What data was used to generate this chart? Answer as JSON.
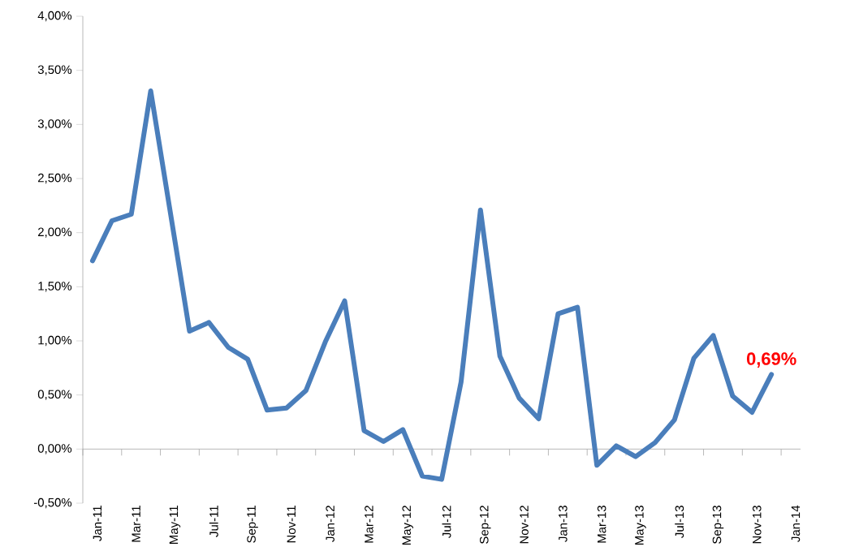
{
  "chart_data": {
    "type": "line",
    "categories": [
      "Jan-11",
      null,
      "Mar-11",
      null,
      "May-11",
      null,
      "Jul-11",
      null,
      "Sep-11",
      null,
      "Nov-11",
      null,
      "Jan-12",
      null,
      "Mar-12",
      null,
      "May-12",
      null,
      "Jul-12",
      null,
      "Sep-12",
      null,
      "Nov-12",
      null,
      "Jan-13",
      null,
      "Mar-13",
      null,
      "May-13",
      null,
      "Jul-13",
      null,
      "Sep-13",
      null,
      "Nov-13",
      null,
      "Jan-14"
    ],
    "series": [
      {
        "color": "#4a7ebb",
        "values": [
          1.74,
          2.11,
          2.17,
          3.31,
          2.2,
          1.09,
          1.17,
          0.94,
          0.83,
          0.36,
          0.38,
          0.54,
          0.99,
          1.37,
          0.17,
          0.07,
          0.18,
          -0.25,
          -0.28,
          0.62,
          2.21,
          0.86,
          0.47,
          0.28,
          1.25,
          1.31,
          -0.15,
          0.03,
          -0.07,
          0.06,
          0.27,
          0.84,
          1.05,
          0.49,
          0.34,
          0.69,
          null
        ]
      }
    ],
    "ylim": [
      -0.5,
      4
    ],
    "yticks": [
      {
        "value": -0.5,
        "label": "-0,50%"
      },
      {
        "value": 0,
        "label": "0,00%"
      },
      {
        "value": 0.5,
        "label": "0,50%"
      },
      {
        "value": 1,
        "label": "1,00%"
      },
      {
        "value": 1.5,
        "label": "1,50%"
      },
      {
        "value": 2,
        "label": "2,00%"
      },
      {
        "value": 2.5,
        "label": "2,50%"
      },
      {
        "value": 3,
        "label": "3,00%"
      },
      {
        "value": 3.5,
        "label": "3,50%"
      },
      {
        "value": 4,
        "label": "4,00%"
      }
    ],
    "annotations": [
      "0,69%"
    ],
    "marker": "none",
    "line_style": "solid"
  }
}
